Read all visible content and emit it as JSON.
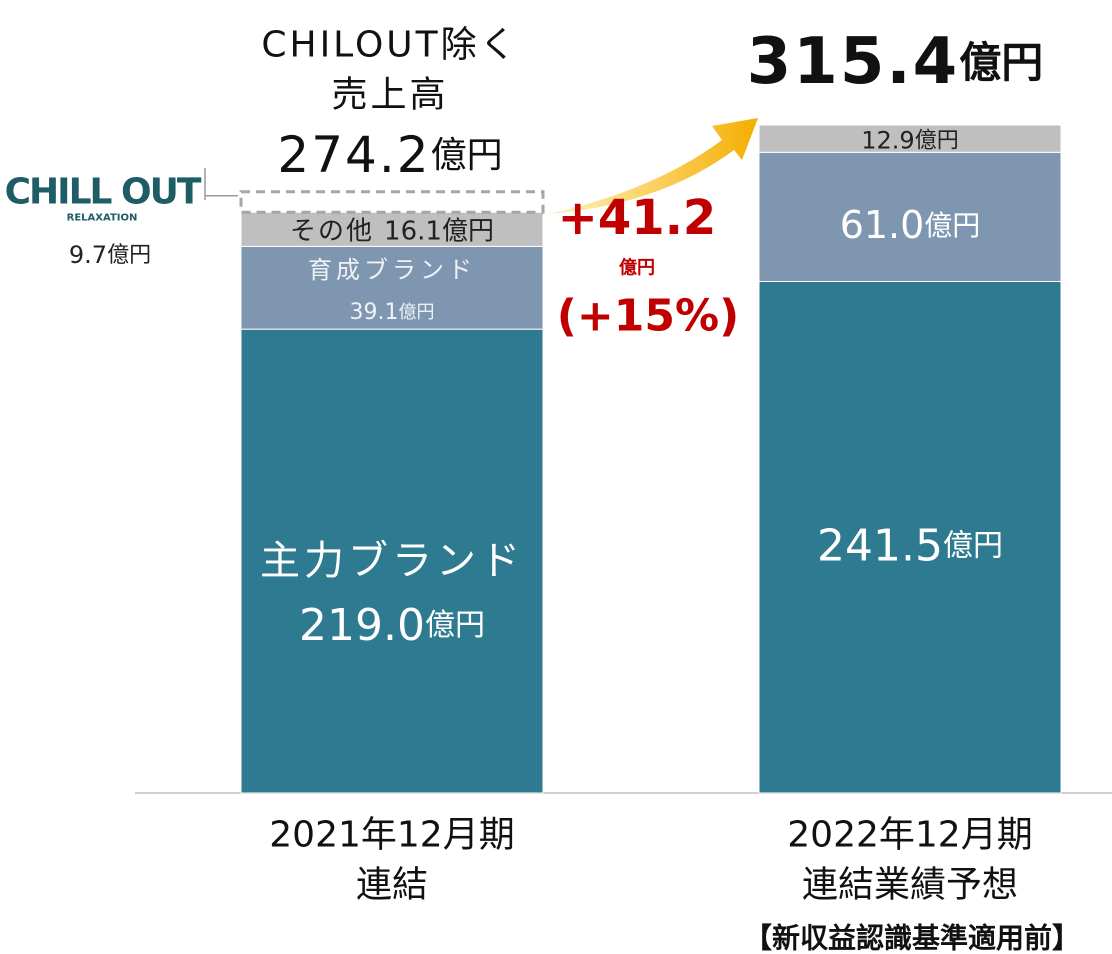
{
  "chart_data": {
    "type": "bar",
    "stacked": true,
    "unit": "億円",
    "categories": [
      [
        "2021年12月期",
        "連結"
      ],
      [
        "2022年12月期",
        "連結業績予想"
      ]
    ],
    "series": [
      {
        "name": "主力ブランド",
        "color": "#2e7a90",
        "values": [
          219.0,
          241.5
        ],
        "value_labels": [
          "219.0",
          "241.5"
        ]
      },
      {
        "name": "育成ブランド",
        "color": "#7f96b0",
        "values": [
          39.1,
          61.0
        ],
        "value_labels": [
          "39.1",
          "61.0"
        ]
      },
      {
        "name": "その他",
        "color": "#bfbfbf",
        "values": [
          16.1,
          12.9
        ],
        "value_labels": [
          "16.1",
          "12.9"
        ]
      },
      {
        "name": "CHILL OUT",
        "subtitle": "RELAXATION",
        "color": "#1e5c66",
        "style": "dashed",
        "values": [
          9.7,
          null
        ],
        "value_labels": [
          "9.7",
          null
        ]
      }
    ],
    "totals": [
      {
        "note": [
          "CHILOUT除く",
          "売上高"
        ],
        "value": 274.2,
        "label": "274.2"
      },
      {
        "value": 315.4,
        "label": "315.4"
      }
    ],
    "change": {
      "value": 41.2,
      "label": "+41.2",
      "percent": 15,
      "percent_label": "(+15%)"
    },
    "footnote": "【新収益認識基準適用前】"
  }
}
